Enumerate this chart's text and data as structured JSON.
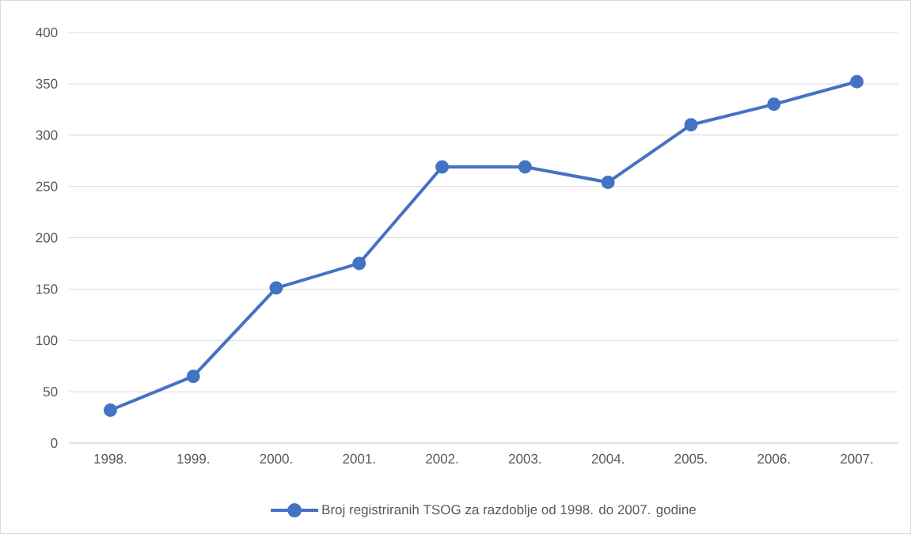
{
  "chart_data": {
    "type": "line",
    "categories": [
      "1998.",
      "1999.",
      "2000.",
      "2001.",
      "2002.",
      "2003.",
      "2004.",
      "2005.",
      "2006.",
      "2007."
    ],
    "series": [
      {
        "name": "Broj registriranih TSOG za razdoblje od 1998. do 2007. godine",
        "color": "#4472c4",
        "values": [
          32,
          65,
          151,
          175,
          269,
          269,
          254,
          310,
          330,
          352
        ]
      }
    ],
    "ylim": [
      0,
      400
    ],
    "yticks": [
      0,
      50,
      100,
      150,
      200,
      250,
      300,
      350,
      400
    ],
    "grid": "y",
    "legend": "bottom",
    "marker": "circle",
    "line_style": "solid"
  }
}
